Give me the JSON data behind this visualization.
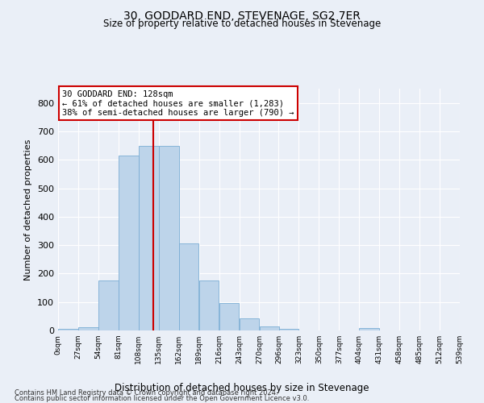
{
  "title1": "30, GODDARD END, STEVENAGE, SG2 7ER",
  "title2": "Size of property relative to detached houses in Stevenage",
  "xlabel": "Distribution of detached houses by size in Stevenage",
  "ylabel": "Number of detached properties",
  "footer1": "Contains HM Land Registry data © Crown copyright and database right 2024.",
  "footer2": "Contains public sector information licensed under the Open Government Licence v3.0.",
  "annotation_line1": "30 GODDARD END: 128sqm",
  "annotation_line2": "← 61% of detached houses are smaller (1,283)",
  "annotation_line3": "38% of semi-detached houses are larger (790) →",
  "property_size": 128,
  "bin_edges": [
    0,
    27,
    54,
    81,
    108,
    135,
    162,
    189,
    216,
    243,
    270,
    296,
    323,
    350,
    377,
    404,
    431,
    458,
    485,
    512,
    539
  ],
  "bar_values": [
    5,
    12,
    175,
    615,
    650,
    650,
    305,
    175,
    97,
    42,
    15,
    5,
    0,
    0,
    0,
    8,
    0,
    0,
    0,
    0
  ],
  "bar_color": "#bdd4ea",
  "bar_edge_color": "#7aadd4",
  "vline_color": "#cc0000",
  "bg_color": "#eaeff7",
  "annotation_box_color": "#cc0000",
  "grid_color": "#ffffff",
  "ylim": [
    0,
    850
  ],
  "yticks": [
    0,
    100,
    200,
    300,
    400,
    500,
    600,
    700,
    800
  ],
  "tick_labels": [
    "0sqm",
    "27sqm",
    "54sqm",
    "81sqm",
    "108sqm",
    "135sqm",
    "162sqm",
    "189sqm",
    "216sqm",
    "243sqm",
    "270sqm",
    "296sqm",
    "323sqm",
    "350sqm",
    "377sqm",
    "404sqm",
    "431sqm",
    "458sqm",
    "485sqm",
    "512sqm",
    "539sqm"
  ]
}
